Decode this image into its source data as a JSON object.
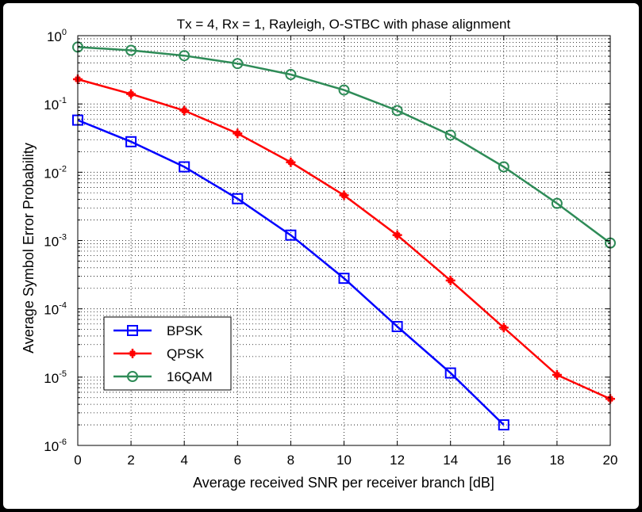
{
  "chart_data": {
    "type": "line",
    "title": "Tx = 4, Rx = 1,  Rayleigh, O-STBC with phase alignment",
    "xlabel": "Average received SNR per receiver branch [dB]",
    "ylabel": "Average Symbol Error Probability",
    "xlim": [
      0,
      20
    ],
    "ylim": [
      1e-06,
      1
    ],
    "yscale": "log",
    "grid": true,
    "legend_position": "bottom-left",
    "x_ticks": [
      "0",
      "2",
      "4",
      "6",
      "8",
      "10",
      "12",
      "14",
      "16",
      "18",
      "20"
    ],
    "y_ticks": [
      {
        "base": "10",
        "exp": "0"
      },
      {
        "base": "10",
        "exp": "-1"
      },
      {
        "base": "10",
        "exp": "-2"
      },
      {
        "base": "10",
        "exp": "-3"
      },
      {
        "base": "10",
        "exp": "-4"
      },
      {
        "base": "10",
        "exp": "-5"
      },
      {
        "base": "10",
        "exp": "-6"
      }
    ],
    "series": [
      {
        "name": "BPSK",
        "color": "#0000ff",
        "marker": "square",
        "x": [
          0,
          2,
          4,
          6,
          8,
          10,
          12,
          14,
          16
        ],
        "values": [
          0.058,
          0.028,
          0.012,
          0.0041,
          0.0012,
          0.00028,
          5.5e-05,
          1.15e-05,
          2e-06
        ]
      },
      {
        "name": "QPSK",
        "color": "#ff0000",
        "marker": "star",
        "x": [
          0,
          2,
          4,
          6,
          8,
          10,
          12,
          14,
          16,
          18,
          20
        ],
        "values": [
          0.23,
          0.14,
          0.08,
          0.037,
          0.014,
          0.0046,
          0.0012,
          0.00026,
          5.3e-05,
          1.08e-05,
          4.8e-06
        ]
      },
      {
        "name": "16QAM",
        "color": "#2e8b57",
        "marker": "circle",
        "x": [
          0,
          2,
          4,
          6,
          8,
          10,
          12,
          14,
          16,
          18,
          20
        ],
        "values": [
          0.68,
          0.61,
          0.51,
          0.39,
          0.27,
          0.16,
          0.08,
          0.035,
          0.012,
          0.0035,
          0.00092
        ]
      }
    ]
  }
}
